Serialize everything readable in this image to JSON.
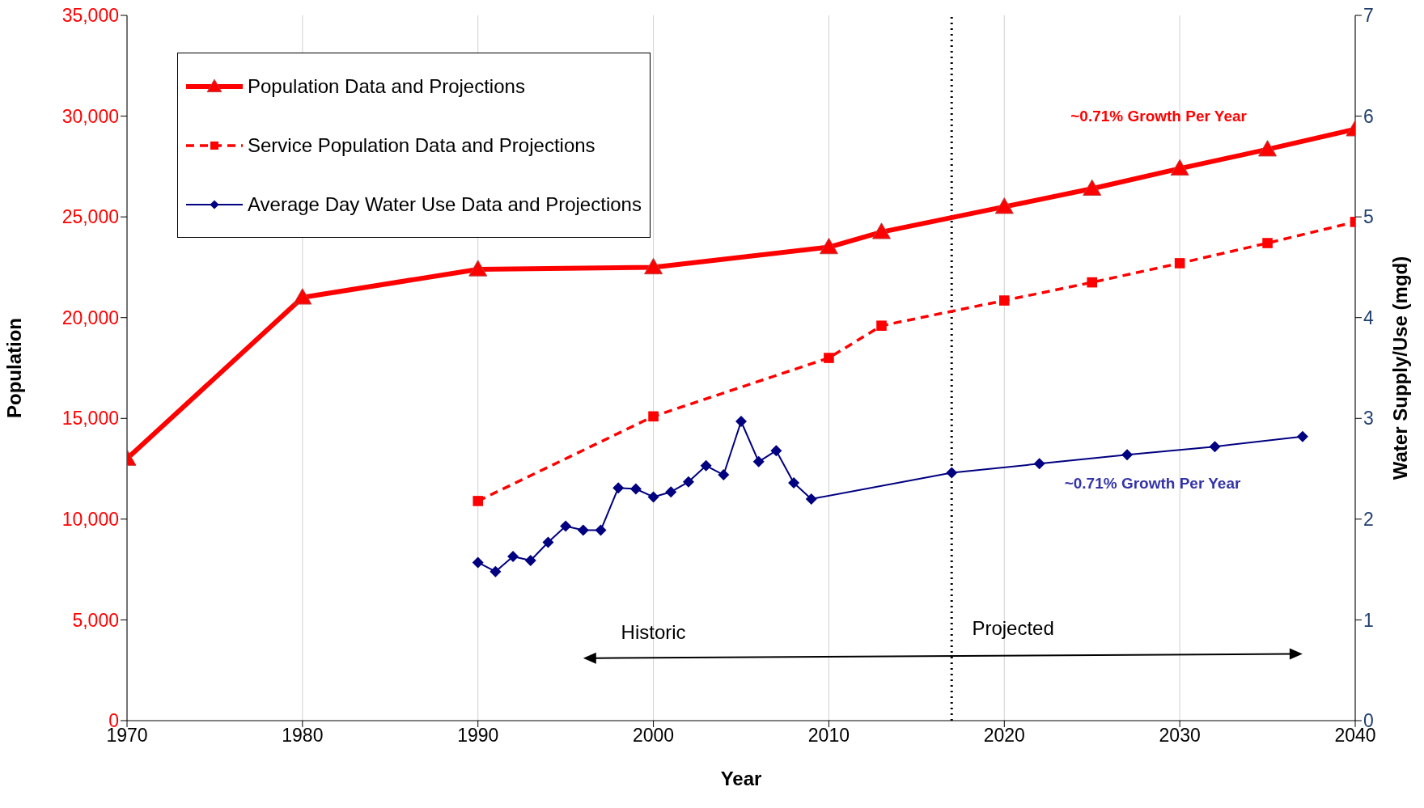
{
  "chart_data": {
    "type": "line",
    "xlabel": "Year",
    "ylabel": "Population",
    "y2label": "Water Supply/Use (mgd)",
    "xlim": [
      1970,
      2040
    ],
    "xticks": [
      1970,
      1980,
      1990,
      2000,
      2010,
      2020,
      2030,
      2040
    ],
    "ylim": [
      0,
      35000
    ],
    "yticks": [
      0,
      {
        "value": 5000,
        "label": "5,000"
      },
      {
        "value": 10000,
        "label": "10,000"
      },
      {
        "value": 15000,
        "label": "15,000"
      },
      {
        "value": 20000,
        "label": "20,000"
      },
      {
        "value": 25000,
        "label": "25,000"
      },
      {
        "value": 30000,
        "label": "30,000"
      },
      {
        "value": 35000,
        "label": "35,000"
      }
    ],
    "y2lim": [
      0,
      7
    ],
    "y2ticks": [
      0,
      1,
      2,
      3,
      4,
      5,
      6,
      7
    ],
    "grid": "x",
    "legend": "top left",
    "series": [
      {
        "name": "Population Data and Projections",
        "color": "#ff0000",
        "marker": "triangle",
        "line_style": "solid",
        "x": [
          1970,
          1980,
          1990,
          2000,
          2010,
          2013,
          2020,
          2025,
          2030,
          2035,
          2040
        ],
        "values": [
          13000,
          21000,
          22400,
          22500,
          23500,
          24250,
          25500,
          26400,
          27400,
          28350,
          29350
        ]
      },
      {
        "name": "Service Population Data and Projections",
        "color": "#ff0000",
        "marker": "square",
        "line_style": "dashed",
        "x": [
          1990,
          2000,
          2010,
          2013,
          2020,
          2025,
          2030,
          2035,
          2040
        ],
        "values": [
          10900,
          15100,
          18000,
          19600,
          20850,
          21750,
          22700,
          23700,
          24750
        ]
      },
      {
        "name": "Average Day Water Use Data and Projections",
        "color": "#000080",
        "marker": "diamond",
        "line_style": "solid",
        "axis": "y2",
        "x": [
          1990,
          1991,
          1992,
          1993,
          1994,
          1995,
          1996,
          1997,
          1998,
          1999,
          2000,
          2001,
          2002,
          2003,
          2004,
          2005,
          2006,
          2007,
          2008,
          2009,
          2017,
          2022,
          2027,
          2032,
          2037
        ],
        "values": [
          1.57,
          1.48,
          1.63,
          1.59,
          1.77,
          1.93,
          1.89,
          1.89,
          2.31,
          2.3,
          2.22,
          2.27,
          2.37,
          2.53,
          2.44,
          2.97,
          2.57,
          2.68,
          2.36,
          2.2,
          2.46,
          2.55,
          2.64,
          2.72,
          2.82
        ]
      }
    ],
    "ref_lines": [
      {
        "axis": "x",
        "value": 2017,
        "line_style": "dotted",
        "color": "#000000"
      }
    ],
    "annotations": [
      "~0.71% Growth Per Year",
      "~0.71% Growth Per Year",
      "Historic",
      "Projected"
    ]
  }
}
